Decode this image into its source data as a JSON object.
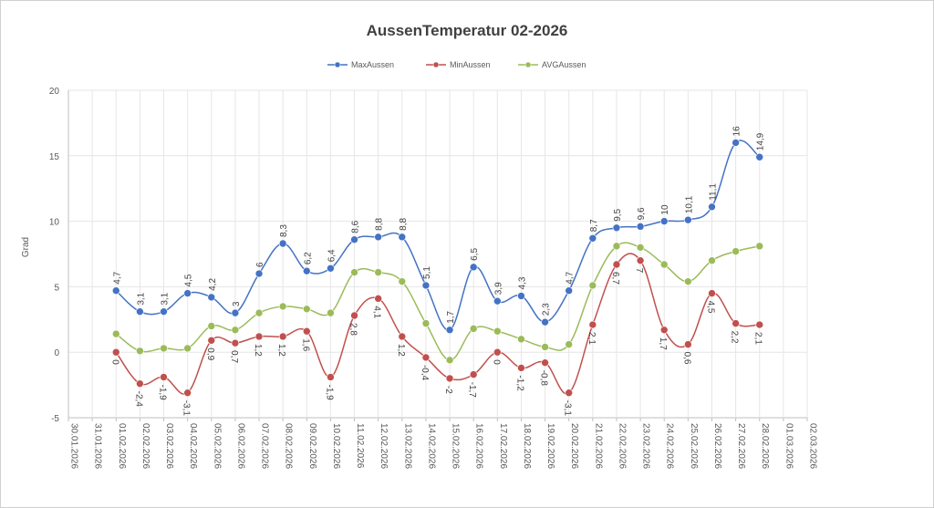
{
  "chart_data": {
    "type": "line",
    "title": "AussenTemperatur 02-2026",
    "xlabel": "",
    "ylabel": "Grad",
    "ylim": [
      -5,
      20
    ],
    "yticks": [
      -5,
      0,
      5,
      10,
      15,
      20
    ],
    "grid": true,
    "legend_position": "top",
    "x": [
      "30.01.2026",
      "31.01.2026",
      "01.02.2026",
      "02.02.2026",
      "03.02.2026",
      "04.02.2026",
      "05.02.2026",
      "06.02.2026",
      "07.02.2026",
      "08.02.2026",
      "09.02.2026",
      "10.02.2026",
      "11.02.2026",
      "12.02.2026",
      "13.02.2026",
      "14.02.2026",
      "15.02.2026",
      "16.02.2026",
      "17.02.2026",
      "18.02.2026",
      "19.02.2026",
      "20.02.2026",
      "21.02.2026",
      "22.02.2026",
      "23.02.2026",
      "24.02.2026",
      "25.02.2026",
      "26.02.2026",
      "27.02.2026",
      "28.02.2026",
      "01.03.2026",
      "02.03.2026"
    ],
    "series": [
      {
        "name": "MaxAussen",
        "color": "#4472c4",
        "labels": "above",
        "values": [
          null,
          null,
          4.7,
          3.1,
          3.1,
          4.5,
          4.2,
          3,
          6,
          8.3,
          6.2,
          6.4,
          8.6,
          8.8,
          8.8,
          5.1,
          1.7,
          6.5,
          3.9,
          4.3,
          2.3,
          4.7,
          8.7,
          9.5,
          9.6,
          10,
          10.1,
          11.1,
          16,
          14.9,
          null,
          null
        ],
        "value_labels": [
          "",
          "",
          "4,7",
          "3,1",
          "3,1",
          "4,5",
          "4,2",
          "3",
          "6",
          "8,3",
          "6,2",
          "6,4",
          "8,6",
          "8,8",
          "8,8",
          "5,1",
          "1,7",
          "6,5",
          "3,9",
          "4,3",
          "2,3",
          "4,7",
          "8,7",
          "9,5",
          "9,6",
          "10",
          "10,1",
          "11,1",
          "16",
          "14,9",
          "",
          ""
        ]
      },
      {
        "name": "MinAussen",
        "color": "#c0504d",
        "labels": "below",
        "values": [
          null,
          null,
          0,
          -2.4,
          -1.9,
          -3.1,
          0.9,
          0.7,
          1.2,
          1.2,
          1.6,
          -1.9,
          2.8,
          4.1,
          1.2,
          -0.4,
          -2,
          -1.7,
          0,
          -1.2,
          -0.8,
          -3.1,
          2.1,
          6.7,
          7,
          1.7,
          0.6,
          4.5,
          2.2,
          2.1,
          null,
          null
        ],
        "value_labels": [
          "",
          "",
          "0",
          "-2,4",
          "-1,9",
          "-3,1",
          "0,9",
          "0,7",
          "1,2",
          "1,2",
          "1,6",
          "-1,9",
          "2,8",
          "4,1",
          "1,2",
          "-0,4",
          "-2",
          "-1,7",
          "0",
          "-1,2",
          "-0,8",
          "-3,1",
          "2,1",
          "6,7",
          "7",
          "1,7",
          "0,6",
          "4,5",
          "2,2",
          "2,1",
          "",
          ""
        ]
      },
      {
        "name": "AVGAussen",
        "color": "#9bbb59",
        "labels": "none",
        "values": [
          null,
          null,
          1.4,
          0.1,
          0.3,
          0.3,
          2.0,
          1.7,
          3.0,
          3.5,
          3.3,
          3.0,
          6.1,
          6.1,
          5.4,
          2.2,
          -0.6,
          1.8,
          1.6,
          1.0,
          0.4,
          0.6,
          5.1,
          8.1,
          8.0,
          6.7,
          5.4,
          7.0,
          7.7,
          8.1,
          null,
          null
        ],
        "value_labels": []
      }
    ]
  }
}
